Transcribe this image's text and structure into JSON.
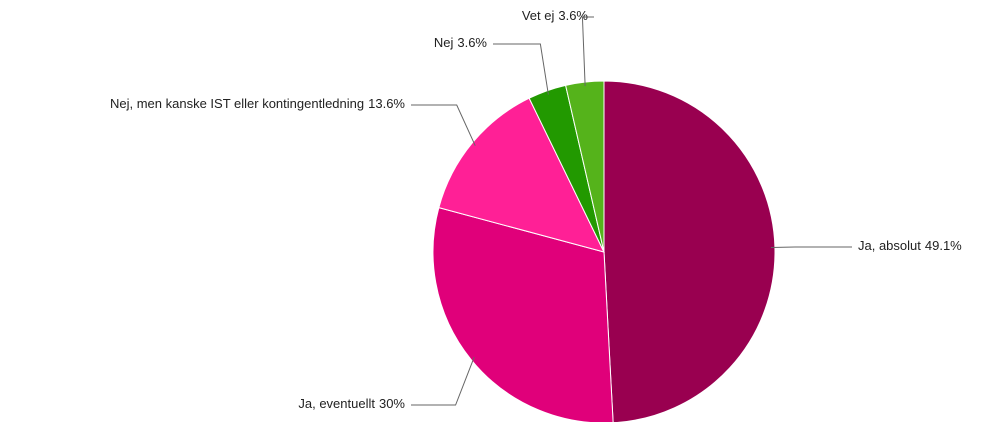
{
  "chart_data": {
    "type": "pie",
    "categories": [
      "Ja, absolut",
      "Ja, eventuellt",
      "Nej, men kanske IST eller kontingentledning",
      "Nej",
      "Vet ej"
    ],
    "values": [
      49.1,
      30,
      13.6,
      3.6,
      3.6
    ],
    "value_labels": [
      "49.1%",
      "30%",
      "13.6%",
      "3.6%",
      "3.6%"
    ],
    "colors": [
      "#990050",
      "#e0007a",
      "#ff2096",
      "#229900",
      "#55b31b"
    ]
  }
}
